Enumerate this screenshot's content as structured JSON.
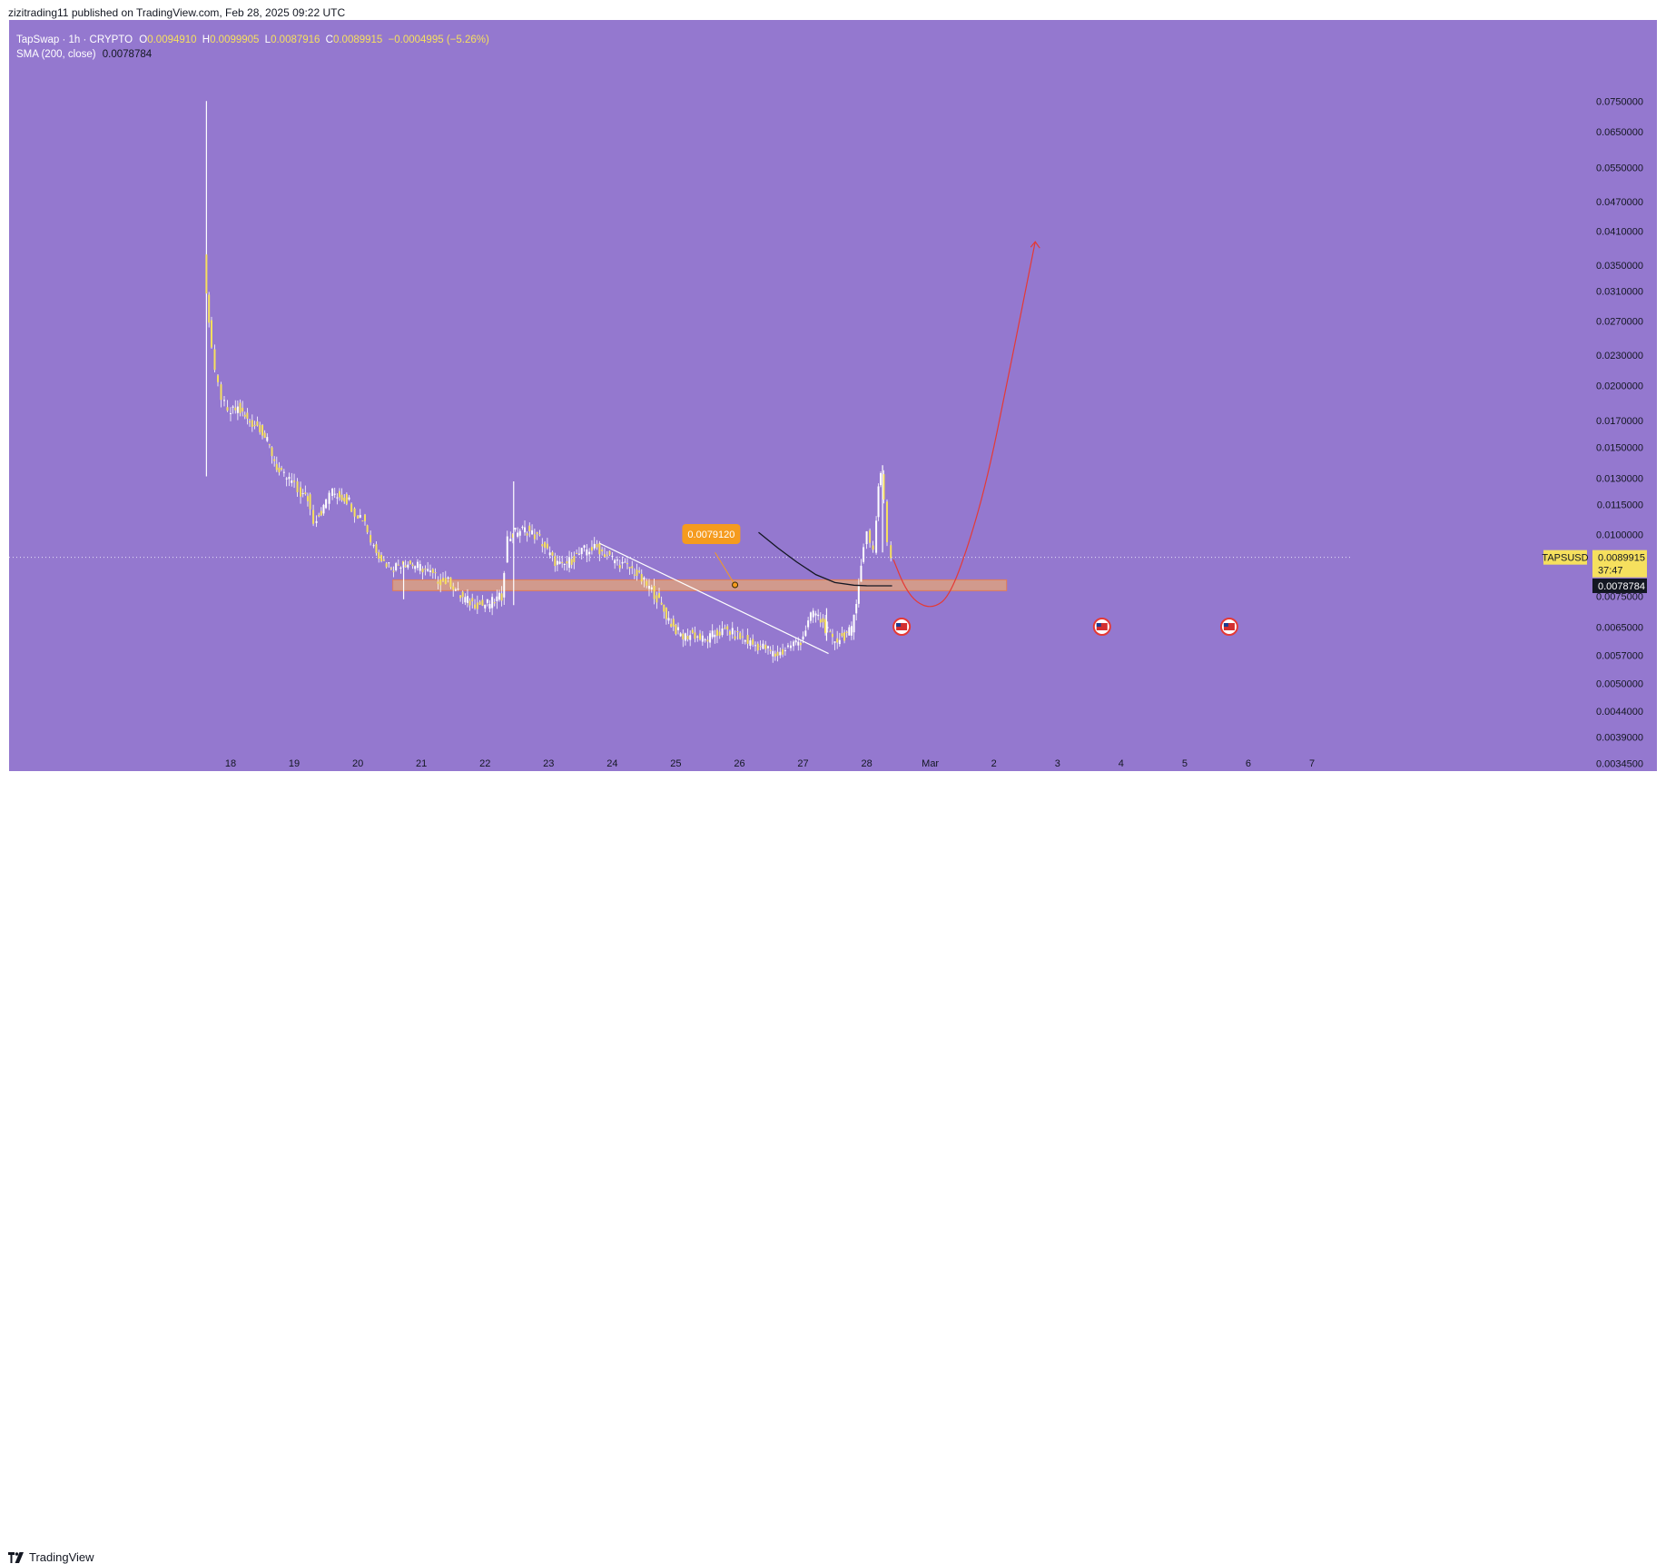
{
  "header": {
    "publisher": "zizitrading11 published on TradingView.com, Feb 28, 2025 09:22 UTC"
  },
  "legend": {
    "symbol": "TapSwap · 1h · CRYPTO",
    "o_label": "O",
    "o": "0.0094910",
    "h_label": "H",
    "h": "0.0099905",
    "l_label": "L",
    "l": "0.0087916",
    "c_label": "C",
    "c": "0.0089915",
    "change": "−0.0004995 (−5.26%)",
    "sma_label": "SMA (200, close)",
    "sma_value": "0.0078784"
  },
  "footer": {
    "brand": "TradingView"
  },
  "colors": {
    "background": "#9478cf",
    "candle": "#f6e05e",
    "wick": "#ffffff",
    "zone": "#e0a27c",
    "annotation": "#f59b1e",
    "projection": "#e53935",
    "sma": "#131722",
    "price_tag": "#f6e05e"
  },
  "chart_data": {
    "type": "candlestick",
    "scale": "log",
    "symbol_tag": "TAPSUSD",
    "last_price": "0.0089915",
    "countdown": "37:47",
    "sma_tag": "0.0078784",
    "annotation_label": "0.0079120",
    "x_ticks": [
      "18",
      "19",
      "20",
      "21",
      "22",
      "23",
      "24",
      "25",
      "26",
      "27",
      "28",
      "Mar",
      "2",
      "3",
      "4",
      "5",
      "6",
      "7"
    ],
    "y_ticks": [
      "0.0750000",
      "0.0650000",
      "0.0550000",
      "0.0470000",
      "0.0410000",
      "0.0350000",
      "0.0310000",
      "0.0270000",
      "0.0230000",
      "0.0200000",
      "0.0170000",
      "0.0150000",
      "0.0130000",
      "0.0115000",
      "0.0100000",
      "0.0075000",
      "0.0065000",
      "0.0057000",
      "0.0050000",
      "0.0044000",
      "0.0039000",
      "0.0034500"
    ],
    "y_tick_values": [
      0.075,
      0.065,
      0.055,
      0.047,
      0.041,
      0.035,
      0.031,
      0.027,
      0.023,
      0.02,
      0.017,
      0.015,
      0.013,
      0.0115,
      0.01,
      0.0075,
      0.0065,
      0.0057,
      0.005,
      0.0044,
      0.0039,
      0.00345
    ],
    "price_path": [
      [
        17.62,
        0.036
      ],
      [
        17.7,
        0.027
      ],
      [
        17.8,
        0.021
      ],
      [
        17.9,
        0.019
      ],
      [
        18.0,
        0.0175
      ],
      [
        18.15,
        0.018
      ],
      [
        18.3,
        0.017
      ],
      [
        18.5,
        0.0165
      ],
      [
        18.65,
        0.015
      ],
      [
        18.8,
        0.0133
      ],
      [
        19.0,
        0.0128
      ],
      [
        19.1,
        0.0122
      ],
      [
        19.25,
        0.0118
      ],
      [
        19.35,
        0.0107
      ],
      [
        19.5,
        0.0113
      ],
      [
        19.6,
        0.0122
      ],
      [
        19.75,
        0.012
      ],
      [
        19.9,
        0.0117
      ],
      [
        20.0,
        0.0111
      ],
      [
        20.15,
        0.0107
      ],
      [
        20.25,
        0.0097
      ],
      [
        20.45,
        0.0088
      ],
      [
        20.6,
        0.0086
      ],
      [
        20.75,
        0.0088
      ],
      [
        20.9,
        0.0087
      ],
      [
        21.1,
        0.0085
      ],
      [
        21.3,
        0.0081
      ],
      [
        21.5,
        0.008
      ],
      [
        21.65,
        0.0075
      ],
      [
        21.8,
        0.0073
      ],
      [
        22.0,
        0.0072
      ],
      [
        22.15,
        0.0073
      ],
      [
        22.3,
        0.0075
      ],
      [
        22.4,
        0.0098
      ],
      [
        22.55,
        0.0102
      ],
      [
        22.7,
        0.0102
      ],
      [
        22.9,
        0.0098
      ],
      [
        23.1,
        0.0089
      ],
      [
        23.25,
        0.0086
      ],
      [
        23.4,
        0.0089
      ],
      [
        23.6,
        0.0093
      ],
      [
        23.8,
        0.0094
      ],
      [
        24.0,
        0.009
      ],
      [
        24.2,
        0.0087
      ],
      [
        24.35,
        0.0085
      ],
      [
        24.5,
        0.0081
      ],
      [
        24.7,
        0.0076
      ],
      [
        24.85,
        0.007
      ],
      [
        25.0,
        0.0065
      ],
      [
        25.15,
        0.0062
      ],
      [
        25.3,
        0.0063
      ],
      [
        25.5,
        0.0061
      ],
      [
        25.65,
        0.0063
      ],
      [
        25.85,
        0.0064
      ],
      [
        26.05,
        0.0062
      ],
      [
        26.25,
        0.006
      ],
      [
        26.45,
        0.0059
      ],
      [
        26.6,
        0.0057
      ],
      [
        26.72,
        0.0058
      ],
      [
        26.85,
        0.006
      ],
      [
        27.0,
        0.0061
      ],
      [
        27.2,
        0.007
      ],
      [
        27.35,
        0.0066
      ],
      [
        27.5,
        0.0061
      ],
      [
        27.65,
        0.0062
      ],
      [
        27.8,
        0.0064
      ],
      [
        27.95,
        0.0086
      ],
      [
        28.05,
        0.0102
      ],
      [
        28.15,
        0.0093
      ],
      [
        28.22,
        0.0125
      ],
      [
        28.27,
        0.0133
      ],
      [
        28.32,
        0.0118
      ],
      [
        28.38,
        0.0095
      ],
      [
        28.42,
        0.0089915
      ]
    ],
    "sma_path": [
      [
        26.3,
        0.0101
      ],
      [
        26.6,
        0.0094
      ],
      [
        26.9,
        0.0088
      ],
      [
        27.2,
        0.0083
      ],
      [
        27.5,
        0.008
      ],
      [
        27.8,
        0.0079
      ],
      [
        28.0,
        0.00788
      ],
      [
        28.2,
        0.007878
      ],
      [
        28.4,
        0.0078784
      ]
    ],
    "zone": {
      "x_start": 20.55,
      "x_end": 30.2,
      "low": 0.0077,
      "high": 0.0081
    },
    "trendline": [
      [
        23.8,
        0.0096
      ],
      [
        27.4,
        0.00575
      ]
    ],
    "pump_candle": {
      "x": 17.62,
      "high": 0.075,
      "low": 0.0131
    },
    "projection_path": [
      [
        28.42,
        0.0089
      ],
      [
        28.6,
        0.0078
      ],
      [
        28.8,
        0.00725
      ],
      [
        29.05,
        0.0071
      ],
      [
        29.3,
        0.0075
      ],
      [
        29.6,
        0.0095
      ],
      [
        29.9,
        0.013
      ],
      [
        30.2,
        0.02
      ],
      [
        30.45,
        0.029
      ],
      [
        30.65,
        0.039
      ]
    ],
    "event_markers": [
      28.55,
      31.7,
      33.7
    ]
  }
}
